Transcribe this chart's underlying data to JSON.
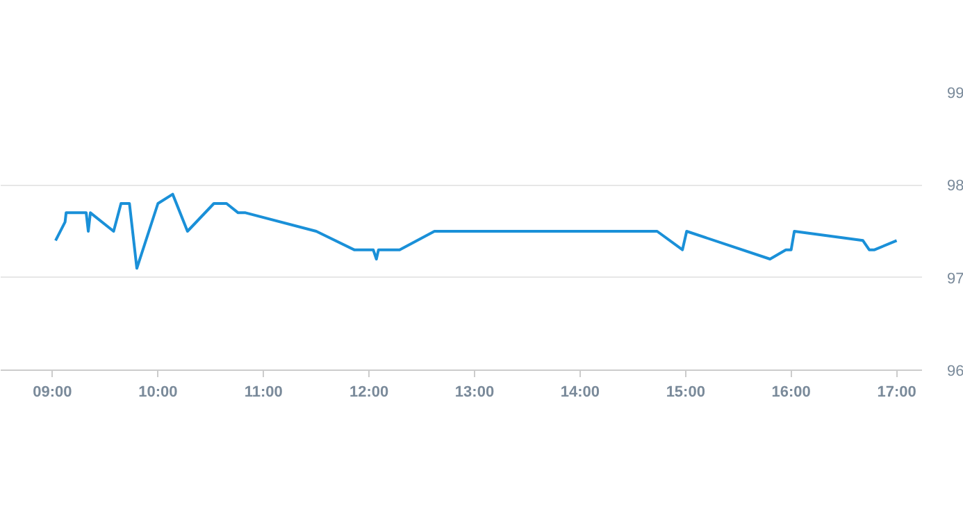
{
  "chart_data": {
    "type": "line",
    "x": [
      9.03,
      9.12,
      9.13,
      9.32,
      9.34,
      9.36,
      9.58,
      9.65,
      9.73,
      9.8,
      10.0,
      10.14,
      10.28,
      10.53,
      10.65,
      10.76,
      10.83,
      11.5,
      11.86,
      12.04,
      12.07,
      12.09,
      12.29,
      12.62,
      14.73,
      14.97,
      15.01,
      15.8,
      15.95,
      16.0,
      16.03,
      16.68,
      16.74,
      16.79,
      17.0
    ],
    "series": [
      {
        "color": "#1a90d8",
        "values": [
          97.4,
          97.6,
          97.7,
          97.7,
          97.5,
          97.7,
          97.5,
          97.8,
          97.8,
          97.1,
          97.8,
          97.9,
          97.5,
          97.8,
          97.8,
          97.7,
          97.7,
          97.5,
          97.3,
          97.3,
          97.2,
          97.3,
          97.3,
          97.5,
          97.5,
          97.3,
          97.5,
          97.2,
          97.3,
          97.3,
          97.5,
          97.4,
          97.3,
          97.3,
          97.4
        ]
      }
    ],
    "xlim": [
      8.51,
      17.24
    ],
    "ylim": [
      96,
      99
    ],
    "xticks": [
      {
        "value": 9,
        "label": "09:00"
      },
      {
        "value": 10,
        "label": "10:00"
      },
      {
        "value": 11,
        "label": "11:00"
      },
      {
        "value": 12,
        "label": "12:00"
      },
      {
        "value": 13,
        "label": "13:00"
      },
      {
        "value": 14,
        "label": "14:00"
      },
      {
        "value": 15,
        "label": "15:00"
      },
      {
        "value": 16,
        "label": "16:00"
      },
      {
        "value": 17,
        "label": "17:00"
      }
    ],
    "yticks": [
      96,
      97,
      98,
      99
    ],
    "grid": "y",
    "marker": "none",
    "line_style": "solid"
  }
}
